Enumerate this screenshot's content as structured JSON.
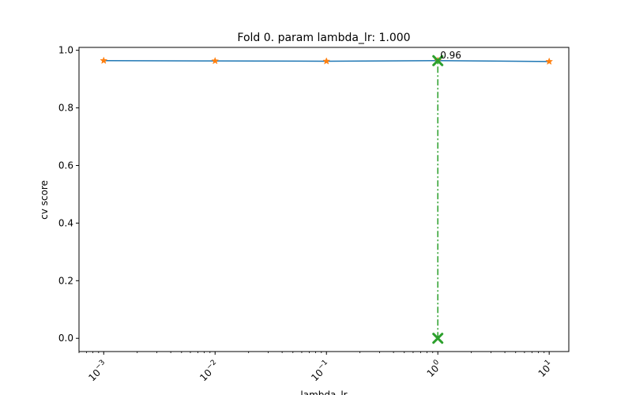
{
  "chart_data": {
    "type": "line",
    "title": "Fold 0. param lambda_lr: 1.000",
    "xlabel": "lambda_lr",
    "ylabel": "cv score",
    "xscale": "log",
    "xlim": [
      0.0006,
      15
    ],
    "ylim": [
      -0.046,
      1.01
    ],
    "grid": false,
    "xticks": [
      {
        "value": 0.001,
        "base": "10",
        "exp": "−3"
      },
      {
        "value": 0.01,
        "base": "10",
        "exp": "−2"
      },
      {
        "value": 0.1,
        "base": "10",
        "exp": "−1"
      },
      {
        "value": 1,
        "base": "10",
        "exp": "0"
      },
      {
        "value": 10,
        "base": "10",
        "exp": "1"
      }
    ],
    "yticks": [
      {
        "value": 0.0,
        "label": "0.0"
      },
      {
        "value": 0.2,
        "label": "0.2"
      },
      {
        "value": 0.4,
        "label": "0.4"
      },
      {
        "value": 0.6,
        "label": "0.6"
      },
      {
        "value": 0.8,
        "label": "0.8"
      },
      {
        "value": 1.0,
        "label": "1.0"
      }
    ],
    "series": [
      {
        "x": [
          0.001,
          0.01,
          0.1,
          1,
          10
        ],
        "y": [
          0.964,
          0.963,
          0.962,
          0.964,
          0.961
        ],
        "line_color": "#1f77b4",
        "marker_color": "#ff7f0e",
        "marker": "star"
      }
    ],
    "best": {
      "x": 1,
      "y": 0.964,
      "label": "0.96",
      "color": "#2ca02c",
      "line_style": "dash-dot",
      "marker": "x"
    }
  }
}
